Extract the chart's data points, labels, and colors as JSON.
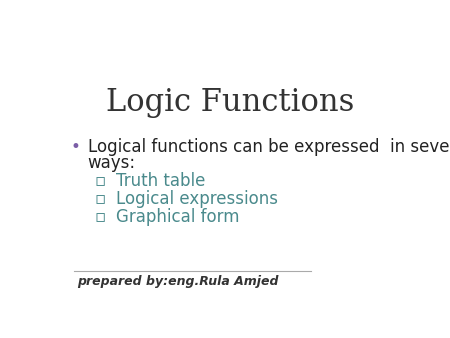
{
  "title": "Logic Functions",
  "title_fontsize": 22,
  "title_color": "#333333",
  "title_font": "serif",
  "bg_color": "#ffffff",
  "header_bar_color1": "#3d3b4a",
  "header_bar_color2": "#4a8a8c",
  "header_bar_color3": "#a8c8cc",
  "bullet_color": "#7b5ea7",
  "bullet_text_line1": "Logical functions can be expressed  in several",
  "bullet_text_line2": "ways:",
  "bullet_fontsize": 12,
  "bullet_text_color": "#222222",
  "sub_items": [
    "Truth table",
    "Logical expressions",
    "Graphical form"
  ],
  "sub_color": "#4a8a8c",
  "sub_fontsize": 12,
  "sub_bullet_char": "▫",
  "footer_text": "prepared by:eng.Rula Amjed",
  "footer_color": "#333333",
  "footer_fontsize": 9
}
